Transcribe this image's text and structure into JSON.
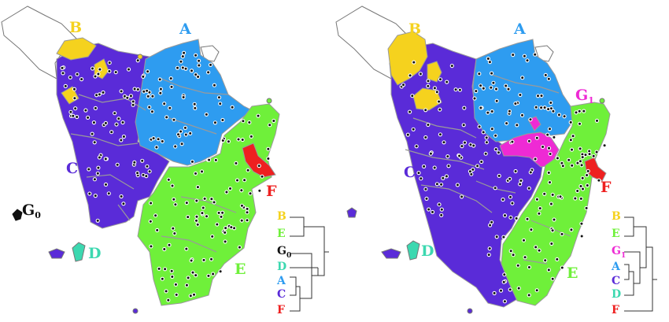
{
  "colors": {
    "A": "#2e9cf0",
    "B": "#f5d21e",
    "C": "#5a2bd8",
    "D": "#3cd8b0",
    "E": "#6ff03a",
    "F": "#ee2020",
    "G0": "#111111",
    "G1": "#ee2ad4",
    "unassigned": "#ffffff",
    "border": "#9a9a9a",
    "dot": "#111111"
  },
  "left_map": {
    "labels": {
      "A": "A",
      "B": "B",
      "C": "C",
      "D": "D",
      "E": "E",
      "F": "F",
      "G": "G",
      "G_sub": "0"
    },
    "dendrogram_leaves": [
      {
        "text": "B",
        "sub": "",
        "cluster": "B"
      },
      {
        "text": "E",
        "sub": "",
        "cluster": "E"
      },
      {
        "text": "G",
        "sub": "0",
        "cluster": "G0"
      },
      {
        "text": "D",
        "sub": "",
        "cluster": "D"
      },
      {
        "text": "A",
        "sub": "",
        "cluster": "A"
      },
      {
        "text": "C",
        "sub": "",
        "cluster": "C"
      },
      {
        "text": "F",
        "sub": "",
        "cluster": "F"
      }
    ]
  },
  "right_map": {
    "labels": {
      "A": "A",
      "B": "B",
      "C": "C",
      "D": "D",
      "E": "E",
      "F": "F",
      "G": "G",
      "G_sub": "1"
    },
    "dendrogram_leaves": [
      {
        "text": "B",
        "sub": "",
        "cluster": "B"
      },
      {
        "text": "E",
        "sub": "",
        "cluster": "E"
      },
      {
        "text": "G",
        "sub": "1",
        "cluster": "G1"
      },
      {
        "text": "A",
        "sub": "",
        "cluster": "A"
      },
      {
        "text": "C",
        "sub": "",
        "cluster": "C"
      },
      {
        "text": "D",
        "sub": "",
        "cluster": "D"
      },
      {
        "text": "F",
        "sub": "",
        "cluster": "F"
      }
    ]
  }
}
